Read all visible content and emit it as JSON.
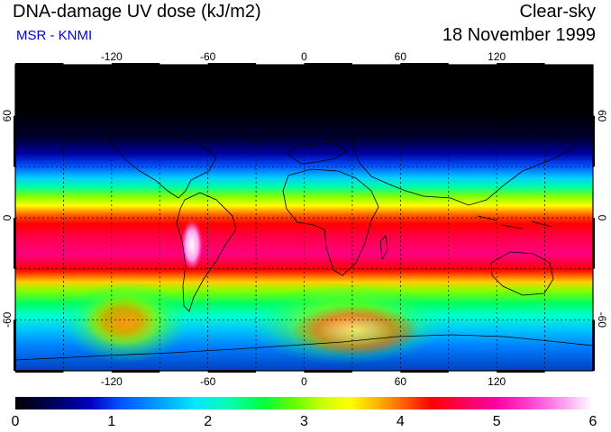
{
  "header": {
    "title": "DNA-damage UV dose (kJ/m2)",
    "source": "MSR - KNMI",
    "sky_condition": "Clear-sky",
    "date": "18 November 1999"
  },
  "colors": {
    "source_text": "#0000ee",
    "frame": "#000000",
    "grid": "#000000"
  },
  "map": {
    "lon_range": [
      -180,
      180
    ],
    "lat_range": [
      -90,
      90
    ],
    "lon_grid_step": 30,
    "lat_grid_step": 30,
    "lon_tick_labels": [
      {
        "value": -120,
        "text": "-120"
      },
      {
        "value": -60,
        "text": "-60"
      },
      {
        "value": 0,
        "text": "0"
      },
      {
        "value": 60,
        "text": "60"
      },
      {
        "value": 120,
        "text": "120"
      }
    ],
    "lat_tick_labels": [
      {
        "value": 60,
        "text": "60"
      },
      {
        "value": 0,
        "text": "0"
      },
      {
        "value": -60,
        "text": "-60"
      }
    ]
  },
  "colorbar": {
    "min": 0,
    "max": 6,
    "unit": "kJ/m2",
    "labels": [
      "0",
      "1",
      "2",
      "3",
      "4",
      "5",
      "6"
    ]
  }
}
